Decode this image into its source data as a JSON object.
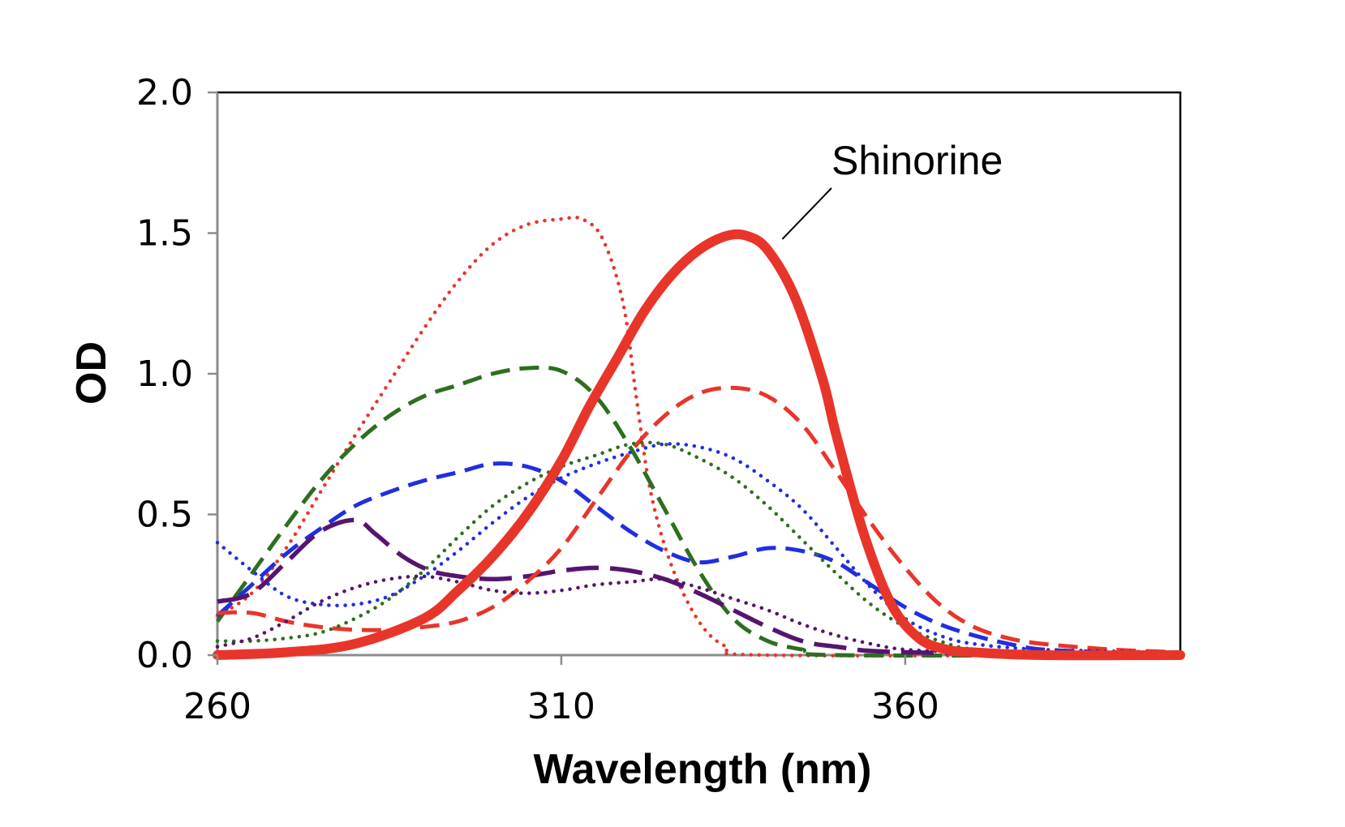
{
  "chart_data": {
    "type": "line",
    "title": "",
    "xlabel": "Wavelength (nm)",
    "ylabel": "OD",
    "xlim": [
      260,
      400
    ],
    "ylim": [
      0,
      2.0
    ],
    "x_ticks": [
      {
        "value": 260,
        "label": "260"
      },
      {
        "value": 310,
        "label": "310"
      },
      {
        "value": 360,
        "label": "360"
      }
    ],
    "y_ticks": [
      {
        "value": 0.0,
        "label": "0.0"
      },
      {
        "value": 0.5,
        "label": "0.5"
      },
      {
        "value": 1.0,
        "label": "1.0"
      },
      {
        "value": 1.5,
        "label": "1.5"
      },
      {
        "value": 2.0,
        "label": "2.0"
      }
    ],
    "grid": false,
    "annotation": {
      "text": "Shinorine",
      "x": 336,
      "y": 1.49
    },
    "series": [
      {
        "name": "Shinorine",
        "color": "#e8352a",
        "style": "solid",
        "points": [
          [
            260,
            0.0
          ],
          [
            270,
            0.01
          ],
          [
            280,
            0.04
          ],
          [
            290,
            0.13
          ],
          [
            295,
            0.23
          ],
          [
            300,
            0.35
          ],
          [
            305,
            0.5
          ],
          [
            310,
            0.69
          ],
          [
            314,
            0.88
          ],
          [
            318,
            1.05
          ],
          [
            322,
            1.22
          ],
          [
            326,
            1.35
          ],
          [
            330,
            1.44
          ],
          [
            334,
            1.49
          ],
          [
            337,
            1.49
          ],
          [
            340,
            1.44
          ],
          [
            344,
            1.27
          ],
          [
            348,
            0.98
          ],
          [
            350,
            0.78
          ],
          [
            354,
            0.43
          ],
          [
            358,
            0.18
          ],
          [
            362,
            0.06
          ],
          [
            366,
            0.02
          ],
          [
            370,
            0.01
          ],
          [
            380,
            0.0
          ],
          [
            400,
            0.0
          ]
        ]
      },
      {
        "color": "#e8352a",
        "style": "dotted",
        "points": [
          [
            260,
            0.14
          ],
          [
            265,
            0.22
          ],
          [
            270,
            0.38
          ],
          [
            275,
            0.58
          ],
          [
            280,
            0.78
          ],
          [
            285,
            0.97
          ],
          [
            290,
            1.16
          ],
          [
            295,
            1.33
          ],
          [
            300,
            1.46
          ],
          [
            305,
            1.53
          ],
          [
            310,
            1.55
          ],
          [
            313,
            1.55
          ],
          [
            316,
            1.48
          ],
          [
            319,
            1.25
          ],
          [
            321,
            0.9
          ],
          [
            323,
            0.58
          ],
          [
            326,
            0.32
          ],
          [
            330,
            0.12
          ],
          [
            334,
            0.03
          ],
          [
            340,
            0.0
          ],
          [
            400,
            0.0
          ]
        ]
      },
      {
        "color": "#2e6e1f",
        "style": "dashed",
        "points": [
          [
            260,
            0.12
          ],
          [
            265,
            0.29
          ],
          [
            270,
            0.46
          ],
          [
            275,
            0.62
          ],
          [
            280,
            0.75
          ],
          [
            285,
            0.85
          ],
          [
            290,
            0.92
          ],
          [
            295,
            0.96
          ],
          [
            300,
            1.0
          ],
          [
            305,
            1.02
          ],
          [
            310,
            1.01
          ],
          [
            315,
            0.92
          ],
          [
            320,
            0.74
          ],
          [
            325,
            0.52
          ],
          [
            330,
            0.3
          ],
          [
            335,
            0.13
          ],
          [
            340,
            0.05
          ],
          [
            345,
            0.02
          ],
          [
            350,
            0.0
          ],
          [
            400,
            0.0
          ]
        ]
      },
      {
        "color": "#1f2fe0",
        "style": "dashed",
        "points": [
          [
            260,
            0.14
          ],
          [
            265,
            0.25
          ],
          [
            270,
            0.36
          ],
          [
            275,
            0.45
          ],
          [
            280,
            0.53
          ],
          [
            285,
            0.58
          ],
          [
            290,
            0.62
          ],
          [
            295,
            0.65
          ],
          [
            300,
            0.68
          ],
          [
            305,
            0.67
          ],
          [
            310,
            0.62
          ],
          [
            315,
            0.53
          ],
          [
            320,
            0.44
          ],
          [
            325,
            0.37
          ],
          [
            330,
            0.33
          ],
          [
            335,
            0.35
          ],
          [
            340,
            0.38
          ],
          [
            345,
            0.37
          ],
          [
            350,
            0.33
          ],
          [
            355,
            0.25
          ],
          [
            360,
            0.17
          ],
          [
            365,
            0.11
          ],
          [
            370,
            0.07
          ],
          [
            375,
            0.04
          ],
          [
            380,
            0.02
          ],
          [
            390,
            0.01
          ],
          [
            400,
            0.0
          ]
        ]
      },
      {
        "color": "#55156f",
        "style": "longdash",
        "points": [
          [
            260,
            0.19
          ],
          [
            265,
            0.22
          ],
          [
            270,
            0.33
          ],
          [
            275,
            0.44
          ],
          [
            280,
            0.48
          ],
          [
            283,
            0.43
          ],
          [
            287,
            0.35
          ],
          [
            291,
            0.3
          ],
          [
            295,
            0.28
          ],
          [
            300,
            0.27
          ],
          [
            305,
            0.28
          ],
          [
            310,
            0.3
          ],
          [
            315,
            0.31
          ],
          [
            320,
            0.3
          ],
          [
            325,
            0.27
          ],
          [
            330,
            0.22
          ],
          [
            335,
            0.16
          ],
          [
            340,
            0.1
          ],
          [
            345,
            0.05
          ],
          [
            350,
            0.03
          ],
          [
            360,
            0.01
          ],
          [
            400,
            0.0
          ]
        ]
      },
      {
        "color": "#e8352a",
        "style": "dashed",
        "points": [
          [
            260,
            0.15
          ],
          [
            265,
            0.15
          ],
          [
            270,
            0.12
          ],
          [
            275,
            0.1
          ],
          [
            280,
            0.09
          ],
          [
            285,
            0.09
          ],
          [
            290,
            0.1
          ],
          [
            295,
            0.12
          ],
          [
            300,
            0.17
          ],
          [
            305,
            0.26
          ],
          [
            310,
            0.38
          ],
          [
            315,
            0.55
          ],
          [
            320,
            0.72
          ],
          [
            325,
            0.85
          ],
          [
            330,
            0.93
          ],
          [
            335,
            0.95
          ],
          [
            340,
            0.92
          ],
          [
            345,
            0.82
          ],
          [
            350,
            0.65
          ],
          [
            355,
            0.47
          ],
          [
            360,
            0.31
          ],
          [
            365,
            0.18
          ],
          [
            370,
            0.1
          ],
          [
            375,
            0.06
          ],
          [
            380,
            0.04
          ],
          [
            390,
            0.02
          ],
          [
            400,
            0.01
          ]
        ]
      },
      {
        "color": "#2e6e1f",
        "style": "dotted",
        "points": [
          [
            260,
            0.05
          ],
          [
            265,
            0.05
          ],
          [
            270,
            0.06
          ],
          [
            275,
            0.08
          ],
          [
            280,
            0.13
          ],
          [
            285,
            0.2
          ],
          [
            290,
            0.3
          ],
          [
            295,
            0.42
          ],
          [
            300,
            0.53
          ],
          [
            305,
            0.61
          ],
          [
            310,
            0.67
          ],
          [
            315,
            0.71
          ],
          [
            320,
            0.75
          ],
          [
            325,
            0.75
          ],
          [
            330,
            0.7
          ],
          [
            335,
            0.63
          ],
          [
            340,
            0.53
          ],
          [
            345,
            0.41
          ],
          [
            350,
            0.29
          ],
          [
            355,
            0.18
          ],
          [
            360,
            0.1
          ],
          [
            365,
            0.05
          ],
          [
            370,
            0.02
          ],
          [
            380,
            0.01
          ],
          [
            400,
            0.0
          ]
        ]
      },
      {
        "color": "#1f2fe0",
        "style": "dotted",
        "points": [
          [
            260,
            0.4
          ],
          [
            265,
            0.3
          ],
          [
            270,
            0.21
          ],
          [
            275,
            0.18
          ],
          [
            280,
            0.18
          ],
          [
            285,
            0.21
          ],
          [
            290,
            0.28
          ],
          [
            295,
            0.37
          ],
          [
            300,
            0.47
          ],
          [
            305,
            0.56
          ],
          [
            310,
            0.63
          ],
          [
            315,
            0.68
          ],
          [
            320,
            0.72
          ],
          [
            325,
            0.75
          ],
          [
            330,
            0.74
          ],
          [
            335,
            0.7
          ],
          [
            340,
            0.62
          ],
          [
            345,
            0.52
          ],
          [
            350,
            0.38
          ],
          [
            355,
            0.24
          ],
          [
            360,
            0.13
          ],
          [
            365,
            0.07
          ],
          [
            370,
            0.04
          ],
          [
            380,
            0.02
          ],
          [
            400,
            0.01
          ]
        ]
      },
      {
        "color": "#55156f",
        "style": "dotted",
        "points": [
          [
            260,
            0.03
          ],
          [
            265,
            0.06
          ],
          [
            270,
            0.12
          ],
          [
            275,
            0.19
          ],
          [
            280,
            0.24
          ],
          [
            285,
            0.27
          ],
          [
            290,
            0.28
          ],
          [
            295,
            0.26
          ],
          [
            300,
            0.23
          ],
          [
            305,
            0.22
          ],
          [
            310,
            0.23
          ],
          [
            315,
            0.25
          ],
          [
            320,
            0.26
          ],
          [
            325,
            0.27
          ],
          [
            330,
            0.24
          ],
          [
            335,
            0.2
          ],
          [
            340,
            0.16
          ],
          [
            345,
            0.11
          ],
          [
            350,
            0.07
          ],
          [
            355,
            0.04
          ],
          [
            360,
            0.02
          ],
          [
            370,
            0.01
          ],
          [
            380,
            0.01
          ],
          [
            400,
            0.0
          ]
        ]
      }
    ]
  }
}
